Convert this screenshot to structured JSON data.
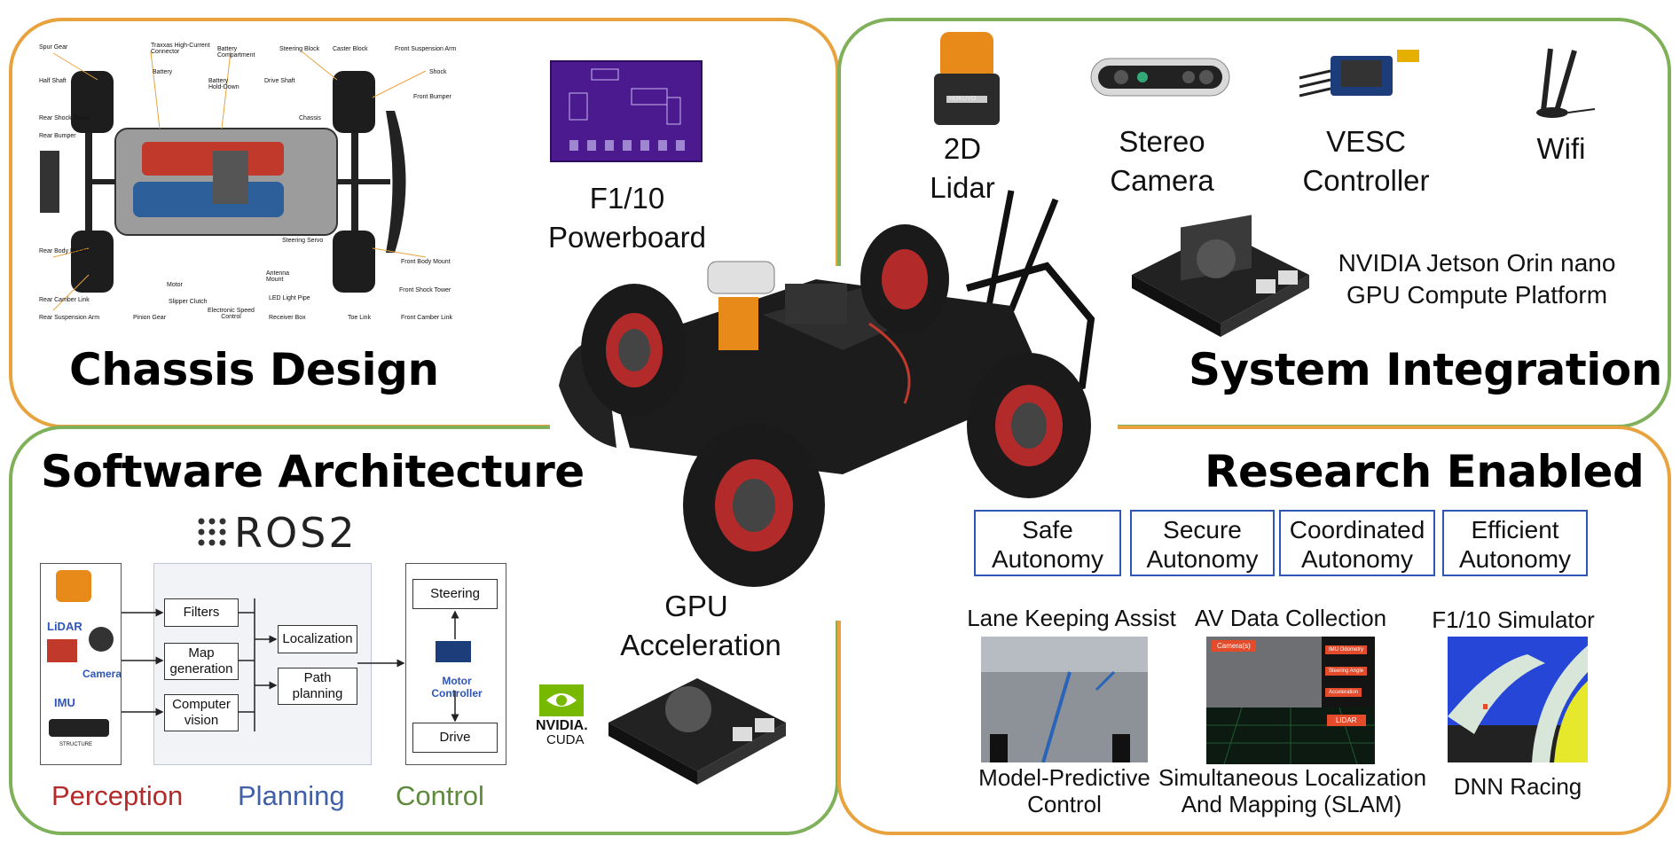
{
  "quadrants": {
    "chassis": {
      "title": "Chassis Design"
    },
    "system": {
      "title": "System Integration"
    },
    "software": {
      "title": "Software Architecture"
    },
    "research": {
      "title": "Research Enabled"
    }
  },
  "chassis_parts": {
    "labels_top": [
      "Spur Gear",
      "Traxxas High-Current Connector",
      "Battery Compartment",
      "Steering Block",
      "Caster Block",
      "Front Suspension Arm"
    ],
    "labels_misc": [
      "Half Shaft",
      "Battery",
      "Battery Hold-Down",
      "Drive Shaft",
      "Shock",
      "Front Bumper",
      "Rear Shock Tower",
      "Rear Bumper",
      "Chassis",
      "Rear Body Mount",
      "Steering Servo",
      "Front Body Mount",
      "Antenna Mount",
      "Motor",
      "Front Shock Tower",
      "Rear Camber Link",
      "Slipper Clutch",
      "LED Light Pipe",
      "Electronic Speed Control",
      "Rear Suspension Arm",
      "Pinion Gear",
      "Receiver Box",
      "Toe Link",
      "Front Camber Link"
    ]
  },
  "powerboard": {
    "line1": "F1/10",
    "line2": "Powerboard"
  },
  "sensors": {
    "lidar": {
      "line1": "2D",
      "line2": "Lidar",
      "brand": "HOKUYO"
    },
    "stereo": {
      "line1": "Stereo",
      "line2": "Camera"
    },
    "vesc": {
      "line1": "VESC",
      "line2": "Controller"
    },
    "wifi": {
      "line1": "Wifi"
    }
  },
  "jetson": {
    "line1": "NVIDIA Jetson Orin nano",
    "line2": "GPU Compute Platform"
  },
  "gpu": {
    "line1": "GPU",
    "line2": "Acceleration",
    "nvidia": "NVIDIA.",
    "cuda": "CUDA"
  },
  "ros": {
    "label": "ROS2"
  },
  "software_flow": {
    "sensors": [
      "LiDAR",
      "Camera",
      "IMU"
    ],
    "structure_label": "STRUCTURE",
    "perception_boxes": [
      "Filters",
      "Map generation",
      "Computer vision"
    ],
    "planning_boxes": [
      "Localization",
      "Path planning"
    ],
    "control_boxes": [
      "Steering",
      "Motor Controller",
      "Drive"
    ]
  },
  "stack_legend": {
    "perception": "Perception",
    "planning": "Planning",
    "control": "Control"
  },
  "autonomy_boxes": [
    {
      "line1": "Safe",
      "line2": "Autonomy"
    },
    {
      "line1": "Secure",
      "line2": "Autonomy"
    },
    {
      "line1": "Coordinated",
      "line2": "Autonomy"
    },
    {
      "line1": "Efficient",
      "line2": "Autonomy"
    }
  ],
  "research_apps": {
    "lane": "Lane Keeping Assist",
    "av": "AV Data Collection",
    "sim": "F1/10 Simulator",
    "mpc_line1": "Model-Predictive",
    "mpc_line2": "Control",
    "slam_line1": "Simultaneous Localization",
    "slam_line2": "And Mapping (SLAM)",
    "dnn": "DNN Racing",
    "av_buttons": [
      "Camera(s)",
      "IMU Odometry",
      "Steering Angle",
      "Acceleration",
      "LIDAR"
    ]
  },
  "colors": {
    "orange": "#e8a33f",
    "green": "#7fb05a",
    "blue_box": "#2f56b7",
    "perception": "#b32a2a",
    "planning": "#3f5fa8",
    "control": "#5f8a3c"
  }
}
